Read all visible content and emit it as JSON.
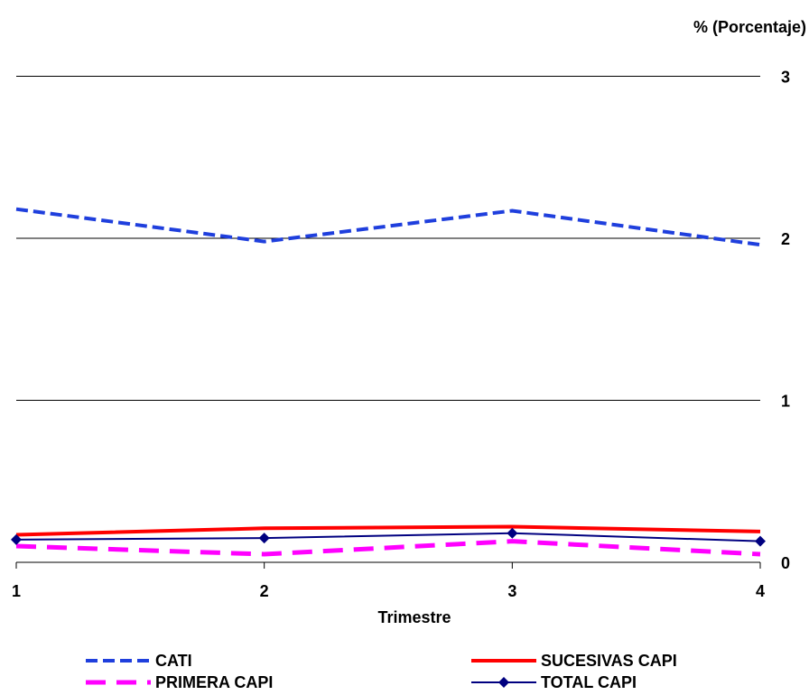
{
  "chart_data": {
    "type": "line",
    "xlabel": "Trimestre",
    "ylabel": "% (Porcentaje)",
    "categories": [
      "1",
      "2",
      "3",
      "4"
    ],
    "ylim": [
      0,
      3
    ],
    "yticks": [
      "0",
      "1",
      "2",
      "3"
    ],
    "y_axis_side": "right",
    "grid": "horizontal",
    "legend_position": "bottom",
    "series": [
      {
        "name": "CATI",
        "values": [
          2.18,
          1.98,
          2.17,
          1.96
        ],
        "color": "#1f3fdd",
        "style": "dashed"
      },
      {
        "name": "SUCESIVAS CAPI",
        "values": [
          0.17,
          0.21,
          0.22,
          0.19
        ],
        "color": "#ff0000",
        "style": "solid-thick"
      },
      {
        "name": "PRIMERA CAPI",
        "values": [
          0.1,
          0.05,
          0.13,
          0.05
        ],
        "color": "#ff00ff",
        "style": "long-dash"
      },
      {
        "name": "TOTAL CAPI",
        "values": [
          0.14,
          0.15,
          0.18,
          0.13
        ],
        "color": "#000080",
        "style": "solid-diamond"
      }
    ]
  }
}
